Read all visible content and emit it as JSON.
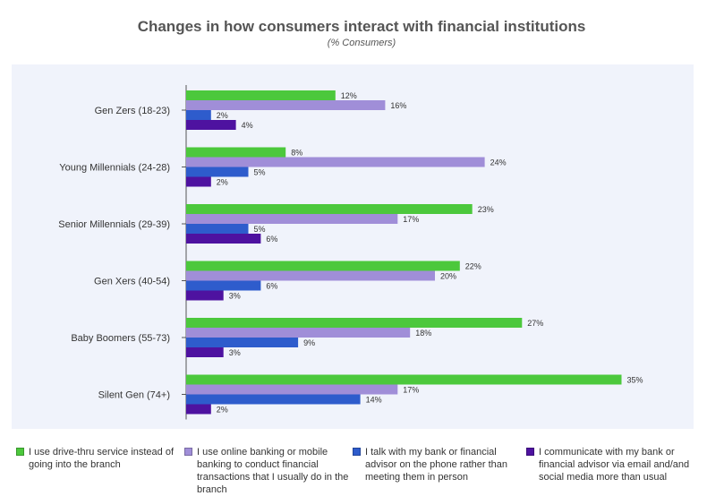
{
  "chart_data": {
    "type": "bar",
    "orientation": "horizontal",
    "title": "Changes in how consumers interact with financial institutions",
    "subtitle": "(% Consumers)",
    "categories": [
      "Gen Zers (18-23)",
      "Young Millennials (24-28)",
      "Senior Millennials (29-39)",
      "Gen Xers (40-54)",
      "Baby Boomers (55-73)",
      "Silent Gen (74+)"
    ],
    "series": [
      {
        "name": "I use drive-thru  service instead of going into the branch",
        "color": "#4cc83c",
        "values": [
          12,
          8,
          23,
          22,
          27,
          35
        ]
      },
      {
        "name": "I use online banking or mobile banking to conduct financial transactions that I usually do in the branch",
        "color": "#a08ed8",
        "values": [
          16,
          24,
          17,
          20,
          18,
          17
        ]
      },
      {
        "name": "I talk with my bank or financial advisor on the phone rather than meeting them in person",
        "color": "#2e5ccc",
        "values": [
          2,
          5,
          5,
          6,
          9,
          14
        ]
      },
      {
        "name": "I communicate with my bank or financial advisor via email and/and social media more than usual",
        "color": "#4e12a0",
        "values": [
          4,
          2,
          6,
          3,
          3,
          2
        ]
      }
    ],
    "value_suffix": "%",
    "xlim": [
      0,
      35
    ],
    "legend_position": "bottom",
    "grid": false
  }
}
